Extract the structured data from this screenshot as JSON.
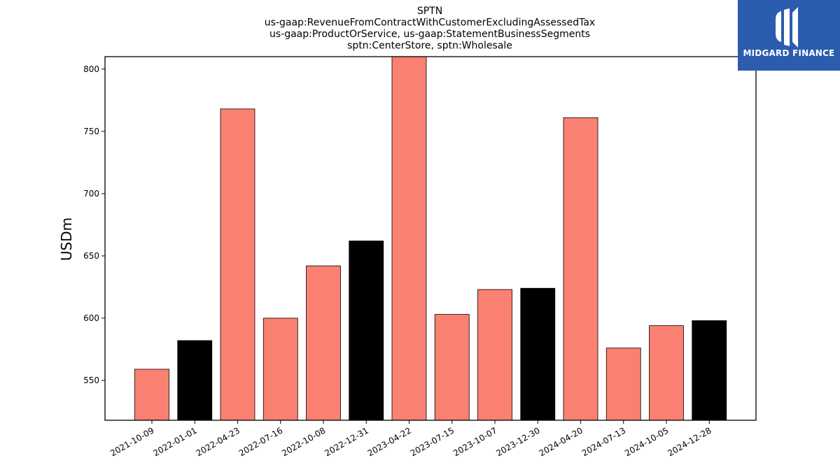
{
  "chart_data": {
    "type": "bar",
    "title_lines": [
      "SPTN",
      "us-gaap:RevenueFromContractWithCustomerExcludingAssessedTax",
      "us-gaap:ProductOrService, us-gaap:StatementBusinessSegments",
      "sptn:CenterStore, sptn:Wholesale"
    ],
    "xlabel": "",
    "ylabel": "USDm",
    "ylim": [
      518,
      810
    ],
    "yticks": [
      550,
      600,
      650,
      700,
      750,
      800
    ],
    "grid": false,
    "categories": [
      "2021-10-09",
      "2022-01-01",
      "2022-04-23",
      "2022-07-16",
      "2022-10-08",
      "2022-12-31",
      "2023-04-22",
      "2023-07-15",
      "2023-10-07",
      "2023-12-30",
      "2024-04-20",
      "2024-07-13",
      "2024-10-05",
      "2024-12-28"
    ],
    "values": [
      559,
      582,
      768,
      600,
      642,
      662,
      810,
      603,
      623,
      624,
      761,
      576,
      594,
      598
    ],
    "bar_colors": [
      "#fa8072",
      "#000000",
      "#fa8072",
      "#fa8072",
      "#fa8072",
      "#000000",
      "#fa8072",
      "#fa8072",
      "#fa8072",
      "#000000",
      "#fa8072",
      "#fa8072",
      "#fa8072",
      "#000000"
    ]
  },
  "logo": {
    "text": "MIDGARD FINANCE",
    "color": "#2b5cae"
  }
}
